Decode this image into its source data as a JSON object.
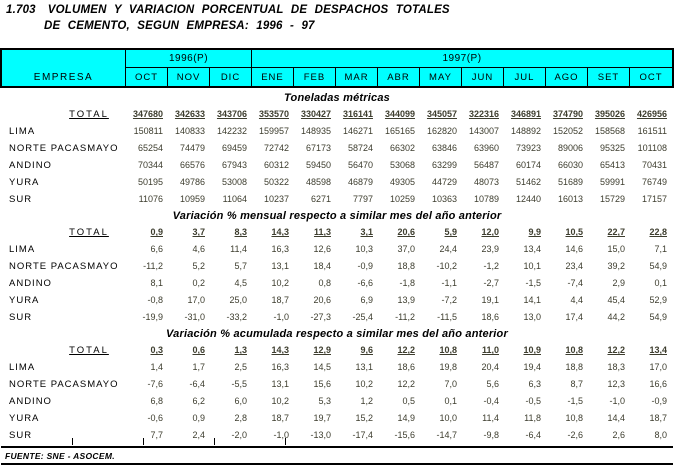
{
  "title": {
    "number": "1.703",
    "line1": "VOLUMEN Y VARIACION PORCENTUAL DE DESPACHOS TOTALES",
    "line2": "DE CEMENTO, SEGUN EMPRESA: 1996 - 97"
  },
  "header": {
    "empresa_label": "EMPRESA",
    "groups": [
      {
        "label": "1996(P)",
        "months": [
          "OCT",
          "NOV",
          "DIC"
        ]
      },
      {
        "label": "1997(P)",
        "months": [
          "ENE",
          "FEB",
          "MAR",
          "ABR",
          "MAY",
          "JUN",
          "JUL",
          "AGO",
          "SET",
          "OCT"
        ]
      }
    ]
  },
  "sections": [
    {
      "title": "Toneladas métricas",
      "rows": [
        {
          "label": "TOTAL",
          "is_total": true,
          "values": [
            "347680",
            "342633",
            "343706",
            "353570",
            "330427",
            "316141",
            "344099",
            "345057",
            "322316",
            "346891",
            "374790",
            "395026",
            "426956"
          ]
        },
        {
          "label": "LIMA",
          "values": [
            "150811",
            "140833",
            "142232",
            "159957",
            "148935",
            "146271",
            "165165",
            "162820",
            "143007",
            "148892",
            "152052",
            "158568",
            "161511"
          ]
        },
        {
          "label": "NORTE PACASMAYO",
          "values": [
            "65254",
            "74479",
            "69459",
            "72742",
            "67173",
            "58724",
            "66302",
            "63846",
            "63960",
            "73923",
            "89006",
            "95325",
            "101108"
          ]
        },
        {
          "label": "ANDINO",
          "values": [
            "70344",
            "66576",
            "67943",
            "60312",
            "59450",
            "56470",
            "53068",
            "63299",
            "56487",
            "60174",
            "66030",
            "65413",
            "70431"
          ]
        },
        {
          "label": "YURA",
          "values": [
            "50195",
            "49786",
            "53008",
            "50322",
            "48598",
            "46879",
            "49305",
            "44729",
            "48073",
            "51462",
            "51689",
            "59991",
            "76749"
          ]
        },
        {
          "label": "SUR",
          "values": [
            "11076",
            "10959",
            "11064",
            "10237",
            "6271",
            "7797",
            "10259",
            "10363",
            "10789",
            "12440",
            "16013",
            "15729",
            "17157"
          ]
        }
      ]
    },
    {
      "title": "Variación % mensual respecto a similar mes del año anterior",
      "rows": [
        {
          "label": "TOTAL",
          "is_total": true,
          "values": [
            "0,9",
            "3,7",
            "8,3",
            "14,3",
            "11,3",
            "3,1",
            "20,6",
            "5,9",
            "12,0",
            "9,9",
            "10,5",
            "22,7",
            "22,8"
          ]
        },
        {
          "label": "LIMA",
          "values": [
            "6,6",
            "4,6",
            "11,4",
            "16,3",
            "12,6",
            "10,3",
            "37,0",
            "24,4",
            "23,9",
            "13,4",
            "14,6",
            "15,0",
            "7,1"
          ]
        },
        {
          "label": "NORTE PACASMAYO",
          "values": [
            "-11,2",
            "5,2",
            "5,7",
            "13,1",
            "18,4",
            "-0,9",
            "18,8",
            "-10,2",
            "-1,2",
            "10,1",
            "23,4",
            "39,2",
            "54,9"
          ]
        },
        {
          "label": "ANDINO",
          "values": [
            "8,1",
            "0,2",
            "4,5",
            "10,2",
            "0,8",
            "-6,6",
            "-1,8",
            "-1,1",
            "-2,7",
            "-1,5",
            "-7,4",
            "2,9",
            "0,1"
          ]
        },
        {
          "label": "YURA",
          "values": [
            "-0,8",
            "17,0",
            "25,0",
            "18,7",
            "20,6",
            "6,9",
            "13,9",
            "-7,2",
            "19,1",
            "14,1",
            "4,4",
            "45,4",
            "52,9"
          ]
        },
        {
          "label": "SUR",
          "values": [
            "-19,9",
            "-31,0",
            "-33,2",
            "-1,0",
            "-27,3",
            "-25,4",
            "-11,2",
            "-11,5",
            "18,6",
            "13,0",
            "17,4",
            "44,2",
            "54,9"
          ]
        }
      ]
    },
    {
      "title": "Variación % acumulada respecto a similar mes del año anterior",
      "rows": [
        {
          "label": "TOTAL",
          "is_total": true,
          "values": [
            "0,3",
            "0,6",
            "1,3",
            "14,3",
            "12,9",
            "9,6",
            "12,2",
            "10,8",
            "11,0",
            "10,9",
            "10,8",
            "12,2",
            "13,4"
          ]
        },
        {
          "label": "LIMA",
          "values": [
            "1,4",
            "1,7",
            "2,5",
            "16,3",
            "14,5",
            "13,1",
            "18,6",
            "19,8",
            "20,4",
            "19,4",
            "18,8",
            "18,3",
            "17,0"
          ]
        },
        {
          "label": "NORTE PACASMAYO",
          "values": [
            "-7,6",
            "-6,4",
            "-5,5",
            "13,1",
            "15,6",
            "10,2",
            "12,2",
            "7,0",
            "5,6",
            "6,3",
            "8,7",
            "12,3",
            "16,6"
          ]
        },
        {
          "label": "ANDINO",
          "values": [
            "6,8",
            "6,2",
            "6,0",
            "10,2",
            "5,3",
            "1,2",
            "0,5",
            "0,1",
            "-0,4",
            "-0,5",
            "-1,5",
            "-1,0",
            "-0,9"
          ]
        },
        {
          "label": "YURA",
          "values": [
            "-0,6",
            "0,9",
            "2,8",
            "18,7",
            "19,7",
            "15,2",
            "14,9",
            "10,0",
            "11,4",
            "11,8",
            "10,8",
            "14,4",
            "18,7"
          ]
        },
        {
          "label": "SUR",
          "values": [
            "7,7",
            "2,4",
            "-2,0",
            "-1,0",
            "-13,0",
            "-17,4",
            "-15,6",
            "-14,7",
            "-9,8",
            "-6,4",
            "-2,6",
            "2,6",
            "8,0"
          ]
        }
      ]
    }
  ],
  "footer": {
    "source": "FUENTE: SNE - ASOCEM."
  },
  "colors": {
    "header_bg": "#00ffff",
    "border": "#000000",
    "number_text": "#3d3d2e"
  }
}
